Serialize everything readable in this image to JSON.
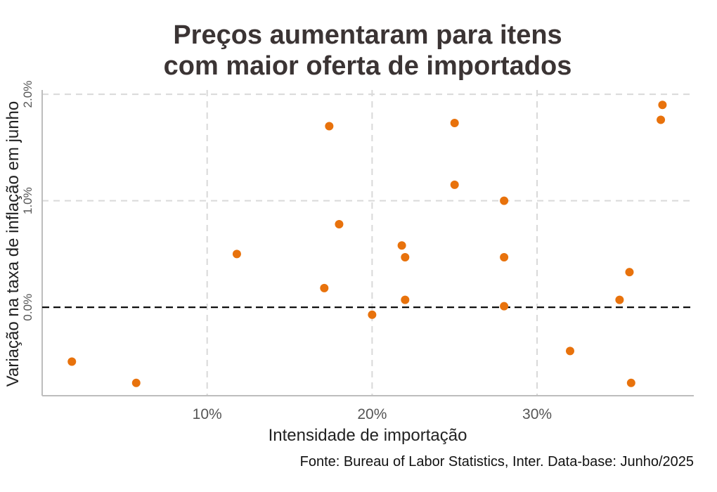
{
  "chart_data": {
    "type": "scatter",
    "title_lines": [
      "Preços aumentaram para itens",
      "com maior oferta de importados"
    ],
    "xlabel": "Intensidade de importação",
    "ylabel": "Variação na taxa de inflação em junho",
    "caption": "Fonte: Bureau of Labor Statistics, Inter. Data-base: Junho/2025",
    "xlim": [
      0,
      39.5
    ],
    "ylim": [
      -0.83,
      2.04
    ],
    "x_ticks": [
      10,
      20,
      30
    ],
    "x_tick_labels": [
      "10%",
      "20%",
      "30%"
    ],
    "y_ticks": [
      0,
      1,
      2
    ],
    "y_tick_labels": [
      "0.0%",
      "1.0%",
      "2.0%"
    ],
    "reference_line": {
      "y": 0,
      "style": "dashed",
      "color": "#000000"
    },
    "grid": true,
    "point_color": "#e8720c",
    "points": [
      {
        "x": 1.8,
        "y": -0.51
      },
      {
        "x": 5.7,
        "y": -0.71
      },
      {
        "x": 11.8,
        "y": 0.5
      },
      {
        "x": 17.1,
        "y": 0.18
      },
      {
        "x": 17.4,
        "y": 1.7
      },
      {
        "x": 18.0,
        "y": 0.78
      },
      {
        "x": 20.0,
        "y": -0.07
      },
      {
        "x": 21.8,
        "y": 0.58
      },
      {
        "x": 22.0,
        "y": 0.47
      },
      {
        "x": 22.0,
        "y": 0.07
      },
      {
        "x": 25.0,
        "y": 1.73
      },
      {
        "x": 25.0,
        "y": 1.15
      },
      {
        "x": 28.0,
        "y": 1.0
      },
      {
        "x": 28.0,
        "y": 0.47
      },
      {
        "x": 28.0,
        "y": 0.01
      },
      {
        "x": 32.0,
        "y": -0.41
      },
      {
        "x": 35.0,
        "y": 0.07
      },
      {
        "x": 35.6,
        "y": 0.33
      },
      {
        "x": 35.7,
        "y": -0.71
      },
      {
        "x": 37.5,
        "y": 1.76
      },
      {
        "x": 37.6,
        "y": 1.9
      }
    ]
  }
}
